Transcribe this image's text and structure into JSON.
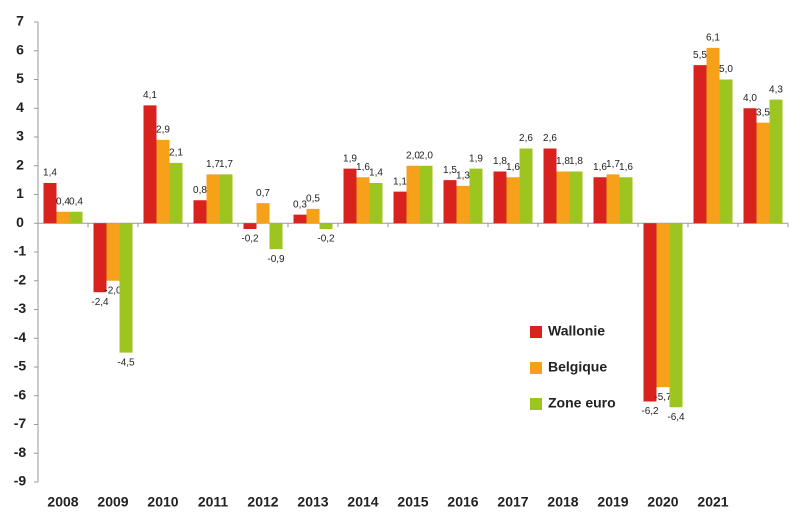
{
  "chart_data": {
    "type": "bar",
    "categories": [
      "2008",
      "2009",
      "2010",
      "2011",
      "2012",
      "2013",
      "2014",
      "2015",
      "2016",
      "2017",
      "2018",
      "2019",
      "2020",
      "2021",
      null
    ],
    "series": [
      {
        "name": "Wallonie",
        "color": "#d9211d",
        "values": [
          1.4,
          -2.4,
          4.1,
          0.8,
          -0.2,
          0.3,
          1.9,
          1.1,
          1.5,
          1.8,
          2.6,
          1.6,
          -6.2,
          5.5,
          4.0
        ],
        "value_labels": [
          "1,4",
          "-2,4",
          "4,1",
          "0,8",
          "-0,2",
          "0,3",
          "1,9",
          "1,1",
          "1,5",
          "1,8",
          "2,6",
          "1,6",
          "-6,2",
          "5,5",
          "4,0"
        ]
      },
      {
        "name": "Belgique",
        "color": "#f7a11a",
        "values": [
          0.4,
          -2.0,
          2.9,
          1.7,
          0.7,
          0.5,
          1.6,
          2.0,
          1.3,
          1.6,
          1.8,
          1.7,
          -5.7,
          6.1,
          3.5
        ],
        "value_labels": [
          "0,4",
          "-2,0",
          "2,9",
          "1,7",
          "0,7",
          "0,5",
          "1,6",
          "2,0",
          "1,3",
          "1,6",
          "1,8",
          "1,7",
          "-5,7",
          "6,1",
          "3,5"
        ]
      },
      {
        "name": "Zone euro",
        "color": "#9cc520",
        "values": [
          0.4,
          -4.5,
          2.1,
          1.7,
          -0.9,
          -0.2,
          1.4,
          2.0,
          1.9,
          2.6,
          1.8,
          1.6,
          -6.4,
          5.0,
          4.3
        ],
        "value_labels": [
          "0,4",
          "-4,5",
          "2,1",
          "1,7",
          "-0,9",
          "-0,2",
          "1,4",
          "2,0",
          "1,9",
          "2,6",
          "1,8",
          "1,6",
          "-6,4",
          "5,0",
          "4,3"
        ]
      }
    ],
    "ylim": [
      -9,
      7
    ],
    "yticks": [
      -9,
      -8,
      -7,
      -6,
      -5,
      -4,
      -3,
      -2,
      -1,
      0,
      1,
      2,
      3,
      4,
      5,
      6,
      7
    ],
    "grid": false
  }
}
